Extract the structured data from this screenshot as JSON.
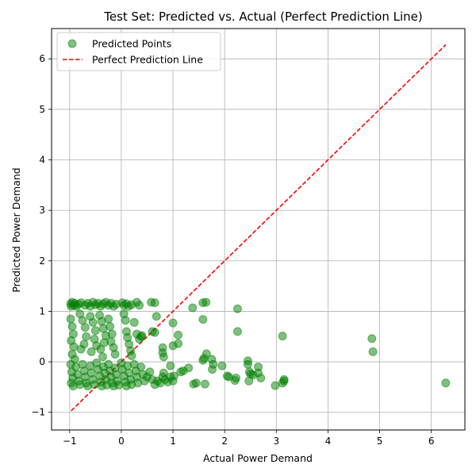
{
  "chart_data": {
    "type": "scatter",
    "title": "Test Set: Predicted vs. Actual (Perfect Prediction Line)",
    "xlabel": "Actual Power Demand",
    "ylabel": "Predicted Power Demand",
    "xlim": [
      -1.35,
      6.65
    ],
    "ylim": [
      -1.35,
      6.6
    ],
    "xticks": [
      -1,
      0,
      1,
      2,
      3,
      4,
      5,
      6
    ],
    "yticks": [
      -1,
      0,
      1,
      2,
      3,
      4,
      5,
      6
    ],
    "grid": true,
    "legend_position": "top-left",
    "series": [
      {
        "name": "Predicted Points",
        "kind": "scatter",
        "color": "#008000",
        "alpha": 0.5,
        "points": [
          [
            -0.98,
            1.15
          ],
          [
            -0.97,
            1.1
          ],
          [
            -0.95,
            1.18
          ],
          [
            -0.92,
            1.12
          ],
          [
            -0.9,
            1.16
          ],
          [
            -0.87,
            1.1
          ],
          [
            -0.83,
            1.14
          ],
          [
            -0.78,
            1.17
          ],
          [
            -0.7,
            1.12
          ],
          [
            -0.65,
            1.16
          ],
          [
            -0.6,
            1.1
          ],
          [
            -0.55,
            1.18
          ],
          [
            -0.5,
            1.13
          ],
          [
            -0.45,
            1.16
          ],
          [
            -0.4,
            1.1
          ],
          [
            -0.35,
            1.15
          ],
          [
            -0.3,
            1.18
          ],
          [
            -0.25,
            1.12
          ],
          [
            -0.2,
            1.16
          ],
          [
            -0.15,
            1.1
          ],
          [
            -0.1,
            1.14
          ],
          [
            0.02,
            1.17
          ],
          [
            0.05,
            1.12
          ],
          [
            0.1,
            1.15
          ],
          [
            0.14,
            1.1
          ],
          [
            0.2,
            1.13
          ],
          [
            0.3,
            1.18
          ],
          [
            0.35,
            1.12
          ],
          [
            0.58,
            1.18
          ],
          [
            0.65,
            1.17
          ],
          [
            -0.98,
            0.85
          ],
          [
            -0.95,
            0.7
          ],
          [
            -0.93,
            0.55
          ],
          [
            -0.97,
            0.42
          ],
          [
            -0.92,
            0.3
          ],
          [
            -0.95,
            0.15
          ],
          [
            -0.9,
            0.05
          ],
          [
            -0.8,
            0.95
          ],
          [
            -0.75,
            0.82
          ],
          [
            -0.7,
            0.68
          ],
          [
            -0.68,
            0.5
          ],
          [
            -0.72,
            0.35
          ],
          [
            -0.78,
            0.25
          ],
          [
            -0.6,
            0.9
          ],
          [
            -0.55,
            0.78
          ],
          [
            -0.5,
            0.62
          ],
          [
            -0.52,
            0.45
          ],
          [
            -0.48,
            0.32
          ],
          [
            -0.58,
            0.2
          ],
          [
            -0.42,
            0.92
          ],
          [
            -0.38,
            0.8
          ],
          [
            -0.35,
            0.66
          ],
          [
            -0.3,
            0.52
          ],
          [
            -0.33,
            0.38
          ],
          [
            -0.4,
            0.25
          ],
          [
            -0.36,
            0.1
          ],
          [
            -0.25,
            0.85
          ],
          [
            -0.22,
            0.7
          ],
          [
            -0.18,
            0.55
          ],
          [
            -0.2,
            0.4
          ],
          [
            -0.15,
            0.28
          ],
          [
            -0.12,
            0.15
          ],
          [
            0.05,
            0.95
          ],
          [
            0.08,
            0.82
          ],
          [
            0.1,
            0.6
          ],
          [
            0.12,
            0.48
          ],
          [
            0.15,
            0.35
          ],
          [
            0.18,
            0.22
          ],
          [
            0.2,
            0.12
          ],
          [
            0.25,
            0.78
          ],
          [
            0.3,
            0.55
          ],
          [
            0.35,
            0.45
          ],
          [
            0.38,
            0.5
          ],
          [
            0.4,
            0.52
          ],
          [
            0.6,
            0.6
          ],
          [
            0.65,
            0.58
          ],
          [
            0.68,
            0.9
          ],
          [
            -0.98,
            -0.05
          ],
          [
            -0.96,
            -0.2
          ],
          [
            -0.94,
            -0.32
          ],
          [
            -0.97,
            -0.42
          ],
          [
            -0.93,
            -0.48
          ],
          [
            -0.88,
            -0.1
          ],
          [
            -0.85,
            -0.25
          ],
          [
            -0.82,
            -0.38
          ],
          [
            -0.8,
            -0.45
          ],
          [
            -0.75,
            -0.05
          ],
          [
            -0.72,
            -0.18
          ],
          [
            -0.7,
            -0.3
          ],
          [
            -0.68,
            -0.42
          ],
          [
            -0.65,
            -0.48
          ],
          [
            -0.6,
            -0.08
          ],
          [
            -0.58,
            -0.22
          ],
          [
            -0.55,
            -0.35
          ],
          [
            -0.52,
            -0.45
          ],
          [
            -0.48,
            -0.02
          ],
          [
            -0.45,
            -0.15
          ],
          [
            -0.42,
            -0.28
          ],
          [
            -0.4,
            -0.4
          ],
          [
            -0.38,
            -0.48
          ],
          [
            -0.35,
            -0.1
          ],
          [
            -0.32,
            -0.22
          ],
          [
            -0.3,
            -0.35
          ],
          [
            -0.28,
            -0.46
          ],
          [
            -0.25,
            -0.05
          ],
          [
            -0.22,
            -0.18
          ],
          [
            -0.2,
            -0.3
          ],
          [
            -0.18,
            -0.42
          ],
          [
            -0.15,
            -0.48
          ],
          [
            -0.12,
            -0.12
          ],
          [
            -0.1,
            -0.25
          ],
          [
            -0.08,
            -0.38
          ],
          [
            -0.05,
            -0.46
          ],
          [
            0.0,
            -0.02
          ],
          [
            0.02,
            -0.15
          ],
          [
            0.05,
            -0.28
          ],
          [
            0.08,
            -0.4
          ],
          [
            0.1,
            -0.48
          ],
          [
            0.12,
            -0.08
          ],
          [
            0.15,
            -0.22
          ],
          [
            0.18,
            -0.35
          ],
          [
            0.2,
            -0.45
          ],
          [
            0.25,
            -0.05
          ],
          [
            0.28,
            -0.18
          ],
          [
            0.3,
            -0.3
          ],
          [
            0.32,
            -0.42
          ],
          [
            0.38,
            -0.1
          ],
          [
            0.42,
            -0.25
          ],
          [
            0.45,
            -0.38
          ],
          [
            0.5,
            -0.3
          ],
          [
            0.55,
            -0.2
          ],
          [
            0.6,
            -0.35
          ],
          [
            0.65,
            -0.45
          ],
          [
            0.7,
            -0.38
          ],
          [
            0.75,
            -0.42
          ],
          [
            0.8,
            -0.3
          ],
          [
            0.82,
            -0.22
          ],
          [
            0.85,
            -0.35
          ],
          [
            0.9,
            -0.4
          ],
          [
            0.95,
            -0.3
          ],
          [
            1.0,
            -0.38
          ],
          [
            1.02,
            -0.28
          ],
          [
            0.8,
            0.28
          ],
          [
            0.82,
            0.1
          ],
          [
            0.8,
            0.18
          ],
          [
            0.95,
            -0.08
          ],
          [
            1.0,
            0.77
          ],
          [
            1.0,
            0.32
          ],
          [
            1.1,
            0.53
          ],
          [
            1.1,
            0.36
          ],
          [
            1.15,
            -0.2
          ],
          [
            1.2,
            -0.18
          ],
          [
            1.3,
            -0.12
          ],
          [
            1.38,
            1.07
          ],
          [
            1.4,
            -0.44
          ],
          [
            1.45,
            -0.42
          ],
          [
            1.58,
            1.17
          ],
          [
            1.58,
            0.84
          ],
          [
            1.58,
            0.03
          ],
          [
            1.6,
            0.07
          ],
          [
            1.62,
            -0.44
          ],
          [
            1.64,
            1.18
          ],
          [
            1.65,
            0.16
          ],
          [
            1.75,
            0.05
          ],
          [
            1.76,
            -0.15
          ],
          [
            1.78,
            -0.05
          ],
          [
            1.95,
            -0.08
          ],
          [
            2.05,
            -0.28
          ],
          [
            2.08,
            -0.3
          ],
          [
            2.2,
            -0.37
          ],
          [
            2.22,
            -0.32
          ],
          [
            2.25,
            1.05
          ],
          [
            2.25,
            0.6
          ],
          [
            2.45,
            0.02
          ],
          [
            2.45,
            -0.05
          ],
          [
            2.47,
            -0.38
          ],
          [
            2.48,
            -0.2
          ],
          [
            2.5,
            -0.24
          ],
          [
            2.55,
            -0.26
          ],
          [
            2.65,
            -0.1
          ],
          [
            2.65,
            -0.22
          ],
          [
            2.7,
            -0.32
          ],
          [
            2.98,
            -0.47
          ],
          [
            3.12,
            0.51
          ],
          [
            3.12,
            -0.42
          ],
          [
            3.15,
            -0.38
          ],
          [
            3.15,
            -0.35
          ],
          [
            4.85,
            0.46
          ],
          [
            4.87,
            0.2
          ],
          [
            6.28,
            -0.42
          ]
        ]
      },
      {
        "name": "Perfect Prediction Line",
        "kind": "line",
        "color": "#ff0000",
        "dash": "dashed",
        "x": [
          -0.97,
          6.28
        ],
        "y": [
          -0.97,
          6.28
        ]
      }
    ]
  }
}
